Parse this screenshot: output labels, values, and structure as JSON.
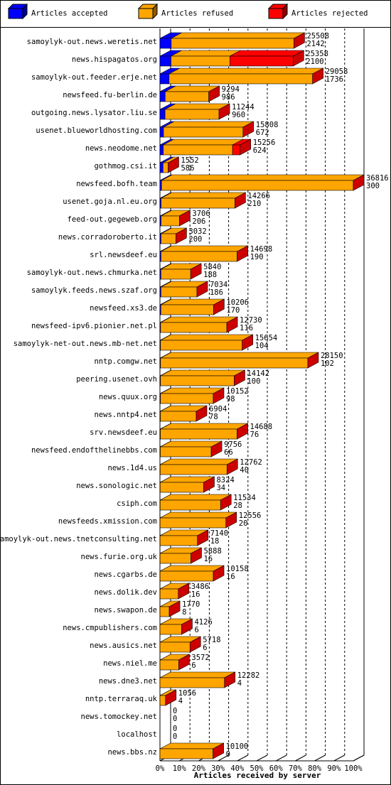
{
  "chart_data": {
    "type": "bar3d",
    "title": "Articles received by server",
    "categories": [
      "samoylyk-out.news.weretis.net",
      "news.hispagatos.org",
      "samoylyk-out.feeder.erje.net",
      "newsfeed.fu-berlin.de",
      "outgoing.news.lysator.liu.se",
      "usenet.blueworldhosting.com",
      "news.neodome.net",
      "gothmog.csi.it",
      "newsfeed.bofh.team",
      "usenet.goja.nl.eu.org",
      "feed-out.gegeweb.org",
      "news.corradoroberto.it",
      "srl.newsdeef.eu",
      "samoylyk-out.news.chmurka.net",
      "samoylyk.feeds.news.szaf.org",
      "newsfeed.xs3.de",
      "newsfeed-ipv6.pionier.net.pl",
      "samoylyk-net-out.news.mb-net.net",
      "nntp.comgw.net",
      "peering.usenet.ovh",
      "news.quux.org",
      "news.nntp4.net",
      "srv.newsdeef.eu",
      "newsfeed.endofthelinebbs.com",
      "news.1d4.us",
      "news.sonologic.net",
      "csiph.com",
      "newsfeeds.xmission.com",
      "samoylyk-out.news.tnetconsulting.net",
      "news.furie.org.uk",
      "news.cgarbs.de",
      "news.dolik.dev",
      "news.swapon.de",
      "news.cmpublishers.com",
      "news.ausics.net",
      "news.niel.me",
      "news.dne3.net",
      "nntp.terraraq.uk",
      "news.tomockey.net",
      "localhost",
      "news.bbs.nz"
    ],
    "series": [
      {
        "name": "Articles accepted",
        "color": "#0000ff",
        "values": [
          5.82,
          5.7,
          4.72,
          2.68,
          2.61,
          1.83,
          1.69,
          1.59,
          0.81,
          0.57,
          0.56,
          0.54,
          0.52,
          0.51,
          0.51,
          0.46,
          0.32,
          0.28,
          0.28,
          0.27,
          0.27,
          0.21,
          0.21,
          0.18,
          0.11,
          0.09,
          0.08,
          0.05,
          0.05,
          0.04,
          0.04,
          0.04,
          0.02,
          0.02,
          0.02,
          0.02,
          0.01,
          0.01,
          0,
          0,
          0
        ]
      },
      {
        "name": "Articles refused",
        "color": "#ffa500",
        "values": [
          63.46,
          30.48,
          74.21,
          22.56,
          27.93,
          41.11,
          35.85,
          2.63,
          99.19,
          38.18,
          9.51,
          7.7,
          39.4,
          15.35,
          18.6,
          27.26,
          34.26,
          42.24,
          76.18,
          38.14,
          27.3,
          18.54,
          39.69,
          26.32,
          34.55,
          22.52,
          31.25,
          34.05,
          19.34,
          15.95,
          27.55,
          9.43,
          4.79,
          11.19,
          15.51,
          9.68,
          33.35,
          2.86,
          0,
          0,
          27.43
        ]
      },
      {
        "name": "Articles rejected",
        "color": "#ff0000",
        "values": [
          0,
          32.7,
          0,
          0,
          0,
          0,
          3.9,
          0,
          0,
          0,
          0,
          0,
          0,
          0,
          0,
          0,
          0,
          0,
          0,
          0,
          0,
          0,
          0,
          0,
          0,
          0,
          0,
          0,
          0,
          0,
          0,
          0,
          0,
          0,
          0,
          0,
          0,
          0,
          0,
          0,
          0
        ]
      }
    ],
    "totals": [
      25508,
      25358,
      29058,
      9294,
      11244,
      15808,
      15256,
      1552,
      36816,
      14266,
      3706,
      3032,
      14698,
      5840,
      7034,
      10206,
      12730,
      15654,
      28150,
      14142,
      10152,
      6904,
      14688,
      9756,
      12762,
      8324,
      11534,
      12556,
      7140,
      5888,
      10158,
      3486,
      1770,
      4126,
      5718,
      3572,
      12282,
      1056,
      0,
      0,
      10100
    ],
    "accepted_counts": [
      2142,
      2100,
      1736,
      986,
      960,
      672,
      624,
      586,
      300,
      210,
      206,
      200,
      190,
      188,
      186,
      170,
      116,
      104,
      102,
      100,
      98,
      78,
      76,
      66,
      40,
      34,
      28,
      20,
      18,
      16,
      16,
      16,
      8,
      6,
      6,
      6,
      4,
      4,
      0,
      0,
      0
    ],
    "xlim": [
      0,
      100
    ],
    "xticks": [
      {
        "value": 0,
        "label": "0%"
      },
      {
        "value": 10,
        "label": "10%"
      },
      {
        "value": 20,
        "label": "20%"
      },
      {
        "value": 30,
        "label": "30%"
      },
      {
        "value": 40,
        "label": "40%"
      },
      {
        "value": 50,
        "label": "50%"
      },
      {
        "value": 60,
        "label": "60%"
      },
      {
        "value": 70,
        "label": "70%"
      },
      {
        "value": 80,
        "label": "80%"
      },
      {
        "value": 90,
        "label": "90%"
      },
      {
        "value": 100,
        "label": "100%"
      }
    ],
    "grid": true
  }
}
